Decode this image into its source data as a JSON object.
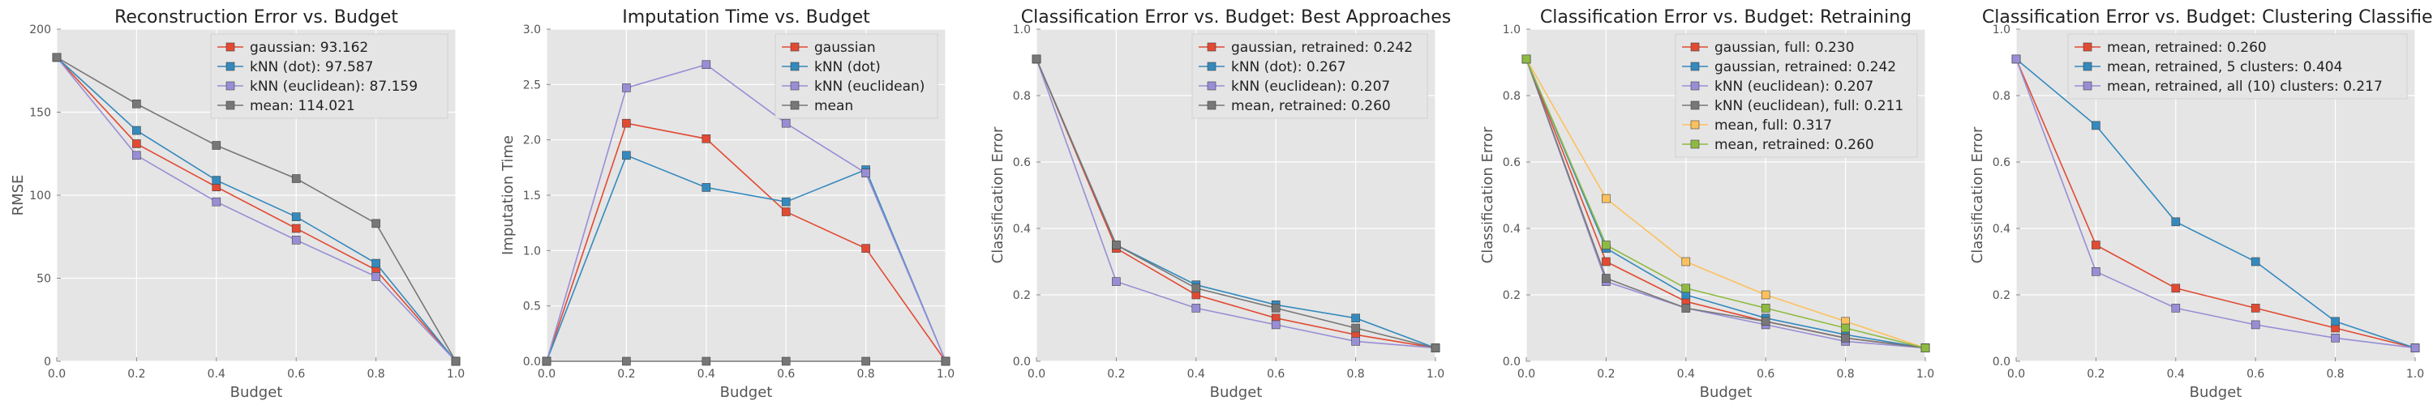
{
  "chart_data": [
    {
      "type": "line",
      "title": "Reconstruction Error vs. Budget",
      "xlabel": "Budget",
      "ylabel": "RMSE",
      "xlim": [
        0,
        1
      ],
      "ylim": [
        0,
        200
      ],
      "x_ticks": [
        "0.0",
        "0.2",
        "0.4",
        "0.6",
        "0.8",
        "1.0"
      ],
      "y_ticks": [
        "0",
        "50",
        "100",
        "150",
        "200"
      ],
      "legend_position": "top-right",
      "grid": true,
      "series": [
        {
          "name": "gaussian: 93.162",
          "color": "#e24a33",
          "x": [
            0,
            0.2,
            0.4,
            0.6,
            0.8,
            1.0
          ],
          "y": [
            183,
            131,
            105,
            80,
            55,
            0
          ]
        },
        {
          "name": "kNN (dot): 97.587",
          "color": "#348abd",
          "x": [
            0,
            0.2,
            0.4,
            0.6,
            0.8,
            1.0
          ],
          "y": [
            183,
            139,
            109,
            87,
            59,
            0
          ]
        },
        {
          "name": "kNN (euclidean): 87.159",
          "color": "#988ed5",
          "x": [
            0,
            0.2,
            0.4,
            0.6,
            0.8,
            1.0
          ],
          "y": [
            183,
            124,
            96,
            73,
            51,
            0
          ]
        },
        {
          "name": "mean: 114.021",
          "color": "#777777",
          "x": [
            0,
            0.2,
            0.4,
            0.6,
            0.8,
            1.0
          ],
          "y": [
            183,
            155,
            130,
            110,
            83,
            0
          ]
        }
      ]
    },
    {
      "type": "line",
      "title": "Imputation Time vs. Budget",
      "xlabel": "Budget",
      "ylabel": "Imputation Time",
      "xlim": [
        0,
        1
      ],
      "ylim": [
        0,
        3
      ],
      "x_ticks": [
        "0.0",
        "0.2",
        "0.4",
        "0.6",
        "0.8",
        "1.0"
      ],
      "y_ticks": [
        "0.0",
        "0.5",
        "1.0",
        "1.5",
        "2.0",
        "2.5",
        "3.0"
      ],
      "legend_position": "top-right",
      "grid": true,
      "series": [
        {
          "name": "gaussian",
          "color": "#e24a33",
          "x": [
            0,
            0.2,
            0.4,
            0.6,
            0.8,
            1.0
          ],
          "y": [
            0,
            2.15,
            2.01,
            1.35,
            1.02,
            0
          ]
        },
        {
          "name": "kNN (dot)",
          "color": "#348abd",
          "x": [
            0,
            0.2,
            0.4,
            0.6,
            0.8,
            1.0
          ],
          "y": [
            0,
            1.86,
            1.57,
            1.44,
            1.73,
            0
          ]
        },
        {
          "name": "kNN (euclidean)",
          "color": "#988ed5",
          "x": [
            0,
            0.2,
            0.4,
            0.6,
            0.8,
            1.0
          ],
          "y": [
            0,
            2.47,
            2.68,
            2.15,
            1.7,
            0
          ]
        },
        {
          "name": "mean",
          "color": "#777777",
          "x": [
            0,
            0.2,
            0.4,
            0.6,
            0.8,
            1.0
          ],
          "y": [
            0,
            0,
            0,
            0,
            0,
            0
          ]
        }
      ]
    },
    {
      "type": "line",
      "title": "Classification Error vs. Budget: Best Approaches",
      "xlabel": "Budget",
      "ylabel": "Classification Error",
      "xlim": [
        0,
        1
      ],
      "ylim": [
        0,
        1
      ],
      "x_ticks": [
        "0.0",
        "0.2",
        "0.4",
        "0.6",
        "0.8",
        "1.0"
      ],
      "y_ticks": [
        "0.0",
        "0.2",
        "0.4",
        "0.6",
        "0.8",
        "1.0"
      ],
      "legend_position": "top-right",
      "grid": true,
      "series": [
        {
          "name": "gaussian, retrained: 0.242",
          "color": "#e24a33",
          "x": [
            0,
            0.2,
            0.4,
            0.6,
            0.8,
            1.0
          ],
          "y": [
            0.91,
            0.34,
            0.2,
            0.13,
            0.08,
            0.04
          ]
        },
        {
          "name": "kNN (dot): 0.267",
          "color": "#348abd",
          "x": [
            0,
            0.2,
            0.4,
            0.6,
            0.8,
            1.0
          ],
          "y": [
            0.91,
            0.35,
            0.23,
            0.17,
            0.13,
            0.04
          ]
        },
        {
          "name": "kNN (euclidean): 0.207",
          "color": "#988ed5",
          "x": [
            0,
            0.2,
            0.4,
            0.6,
            0.8,
            1.0
          ],
          "y": [
            0.91,
            0.24,
            0.16,
            0.11,
            0.06,
            0.04
          ]
        },
        {
          "name": "mean, retrained: 0.260",
          "color": "#777777",
          "x": [
            0,
            0.2,
            0.4,
            0.6,
            0.8,
            1.0
          ],
          "y": [
            0.91,
            0.35,
            0.22,
            0.16,
            0.1,
            0.04
          ]
        }
      ]
    },
    {
      "type": "line",
      "title": "Classification Error vs. Budget: Retraining",
      "xlabel": "Budget",
      "ylabel": "Classification Error",
      "xlim": [
        0,
        1
      ],
      "ylim": [
        0,
        1
      ],
      "x_ticks": [
        "0.0",
        "0.2",
        "0.4",
        "0.6",
        "0.8",
        "1.0"
      ],
      "y_ticks": [
        "0.0",
        "0.2",
        "0.4",
        "0.6",
        "0.8",
        "1.0"
      ],
      "legend_position": "top-right",
      "grid": true,
      "series": [
        {
          "name": "gaussian, full: 0.230",
          "color": "#e24a33",
          "x": [
            0,
            0.2,
            0.4,
            0.6,
            0.8,
            1.0
          ],
          "y": [
            0.91,
            0.3,
            0.18,
            0.12,
            0.07,
            0.04
          ]
        },
        {
          "name": "gaussian, retrained: 0.242",
          "color": "#348abd",
          "x": [
            0,
            0.2,
            0.4,
            0.6,
            0.8,
            1.0
          ],
          "y": [
            0.91,
            0.34,
            0.2,
            0.13,
            0.08,
            0.04
          ]
        },
        {
          "name": "kNN (euclidean): 0.207",
          "color": "#988ed5",
          "x": [
            0,
            0.2,
            0.4,
            0.6,
            0.8,
            1.0
          ],
          "y": [
            0.91,
            0.24,
            0.16,
            0.11,
            0.06,
            0.04
          ]
        },
        {
          "name": "kNN (euclidean), full: 0.211",
          "color": "#777777",
          "x": [
            0,
            0.2,
            0.4,
            0.6,
            0.8,
            1.0
          ],
          "y": [
            0.91,
            0.25,
            0.16,
            0.12,
            0.07,
            0.04
          ]
        },
        {
          "name": "mean, full: 0.317",
          "color": "#fbc15e",
          "x": [
            0,
            0.2,
            0.4,
            0.6,
            0.8,
            1.0
          ],
          "y": [
            0.91,
            0.49,
            0.3,
            0.2,
            0.12,
            0.04
          ]
        },
        {
          "name": "mean, retrained: 0.260",
          "color": "#8eba42",
          "x": [
            0,
            0.2,
            0.4,
            0.6,
            0.8,
            1.0
          ],
          "y": [
            0.91,
            0.35,
            0.22,
            0.16,
            0.1,
            0.04
          ]
        }
      ]
    },
    {
      "type": "line",
      "title": "Classification Error vs. Budget: Clustering Classifiers",
      "xlabel": "Budget",
      "ylabel": "Classification Error",
      "xlim": [
        0,
        1
      ],
      "ylim": [
        0,
        1
      ],
      "x_ticks": [
        "0.0",
        "0.2",
        "0.4",
        "0.6",
        "0.8",
        "1.0"
      ],
      "y_ticks": [
        "0.0",
        "0.2",
        "0.4",
        "0.6",
        "0.8",
        "1.0"
      ],
      "legend_position": "top-right",
      "grid": true,
      "series": [
        {
          "name": "mean, retrained: 0.260",
          "color": "#e24a33",
          "x": [
            0,
            0.2,
            0.4,
            0.6,
            0.8,
            1.0
          ],
          "y": [
            0.91,
            0.35,
            0.22,
            0.16,
            0.1,
            0.04
          ]
        },
        {
          "name": "mean, retrained, 5 clusters: 0.404",
          "color": "#348abd",
          "x": [
            0,
            0.2,
            0.4,
            0.6,
            0.8,
            1.0
          ],
          "y": [
            0.91,
            0.71,
            0.42,
            0.3,
            0.12,
            0.04
          ]
        },
        {
          "name": "mean, retrained, all (10) clusters: 0.217",
          "color": "#988ed5",
          "x": [
            0,
            0.2,
            0.4,
            0.6,
            0.8,
            1.0
          ],
          "y": [
            0.91,
            0.27,
            0.16,
            0.11,
            0.07,
            0.04
          ]
        }
      ]
    }
  ]
}
